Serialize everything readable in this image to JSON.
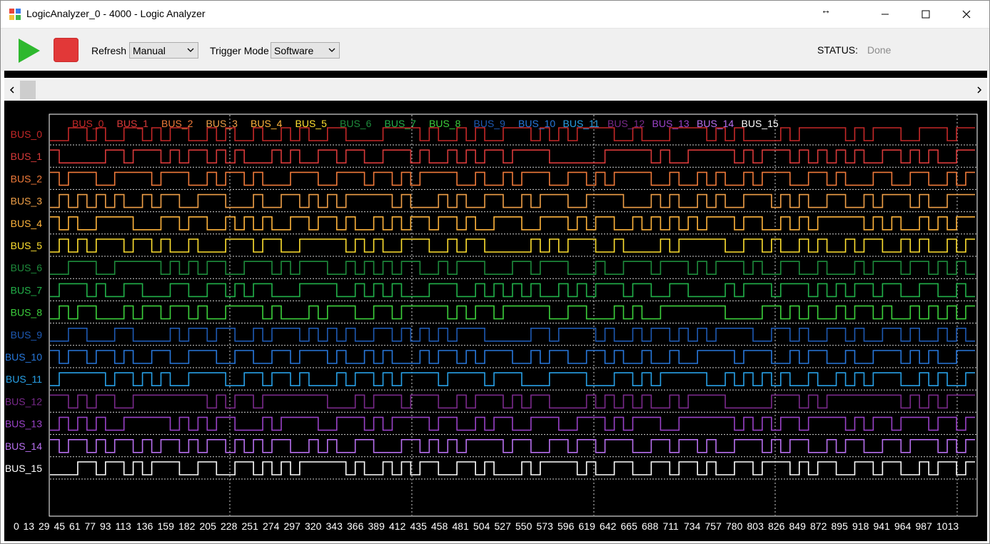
{
  "window": {
    "title": "LogicAnalyzer_0 - 4000 - Logic Analyzer",
    "resize_glyph": "↔",
    "buttons": [
      "minimize-icon",
      "maximize-icon",
      "close-icon"
    ]
  },
  "toolbar": {
    "run_icon": "play-icon",
    "stop_icon": "stop-icon",
    "refresh_label": "Refresh",
    "refresh_value": "Manual",
    "trigger_label": "Trigger Mode",
    "trigger_value": "Software",
    "status_label": "STATUS:",
    "status_value": "Done"
  },
  "colors": {
    "play": "#2eb82e",
    "stop": "#e23838",
    "grid": "#ffffff",
    "background": "#000000"
  },
  "channels": [
    {
      "name": "BUS_0",
      "color": "#c62828",
      "bits": "0011010011010110010100100101001100001111010010100111010101111001000111101010000101111101011100111011"
    },
    {
      "name": "BUS_1",
      "color": "#d83a3a",
      "bits": "1000001101110101101010001010011011001110100101011011110000001111101001111101011101010101001101010011"
    },
    {
      "name": "BUS_2",
      "color": "#f07a3a",
      "bits": "1011100111101110010110100011100111011010111100100101110011010111100100101001011100110100011001100101"
    },
    {
      "name": "BUS_3",
      "color": "#f0a048",
      "bits": "0101010100101100111000100110101011111010001010011001011100111100010100101001110101001100101110100111"
    },
    {
      "name": "BUS_4",
      "color": "#ffb43c",
      "bits": "1010011110001101100101010011011010010101101101001110011101011001010101011101100101011111010100101011"
    },
    {
      "name": "BUS_5",
      "color": "#ffe030",
      "bits": "0101011101101001000111011001111101010011100101100000101011100100001011111001101001010010110010100101"
    },
    {
      "name": "BUS_6",
      "color": "#1e8c3c",
      "bits": "0011100111110101011001110101110010101011001011100011011100010011101110101110100110010001011101101010"
    },
    {
      "name": "BUS_7",
      "color": "#22b24a",
      "bits": "0111010011000110011010110001111001010100011100101010100101011101100110000101110111010101101100110010"
    },
    {
      "name": "BUS_8",
      "color": "#3cd03c",
      "bits": "0101100010110110100111101000101110011011111010110111110011000101001111111000011010100101101001010101"
    },
    {
      "name": "BUS_9",
      "color": "#1e5ab4",
      "bits": "0011000110000101101100101110101010011010101011100000110111101001011010101111001101001101001101001010"
    },
    {
      "name": "BUS_10",
      "color": "#2878dc",
      "bits": "1011011010011001110011001101110100101000101101011100101100110100100100111101110010110010011101010011"
    },
    {
      "name": "BUS_11",
      "color": "#28a0e6",
      "bits": "0111110110101001111001101101000101101011110111101110001111000110101111100101010100100101011100101001"
    },
    {
      "name": "BUS_12",
      "color": "#7a2a8c",
      "bits": "1101011001111111101011011111110001011101110010111010110000101010100101111000001110101111111101010111"
    },
    {
      "name": "BUS_13",
      "color": "#9a42c8",
      "bits": "0101010011111010101100010111100111010111101100101100111001110101110011111101010110111101011011101101"
    },
    {
      "name": "BUS_14",
      "color": "#b870f0",
      "bits": "1011010110101101011010101100101001100011010101111011001101101110011011010011101011001011001101110101"
    },
    {
      "name": "BUS_15",
      "color": "#ffffff",
      "bits": "0001101101011100110011010101111101001010110011010001011110100110011011010011011101011001101100101101"
    }
  ],
  "x_axis_ticks": [
    "0",
    "13",
    "29",
    "45",
    "61",
    "77",
    "93",
    "113",
    "136",
    "159",
    "182",
    "205",
    "228",
    "251",
    "274",
    "297",
    "320",
    "343",
    "366",
    "389",
    "412",
    "435",
    "458",
    "481",
    "504",
    "527",
    "550",
    "573",
    "596",
    "619",
    "642",
    "665",
    "688",
    "711",
    "734",
    "757",
    "780",
    "803",
    "826",
    "849",
    "872",
    "895",
    "918",
    "941",
    "964",
    "987",
    "1013"
  ]
}
